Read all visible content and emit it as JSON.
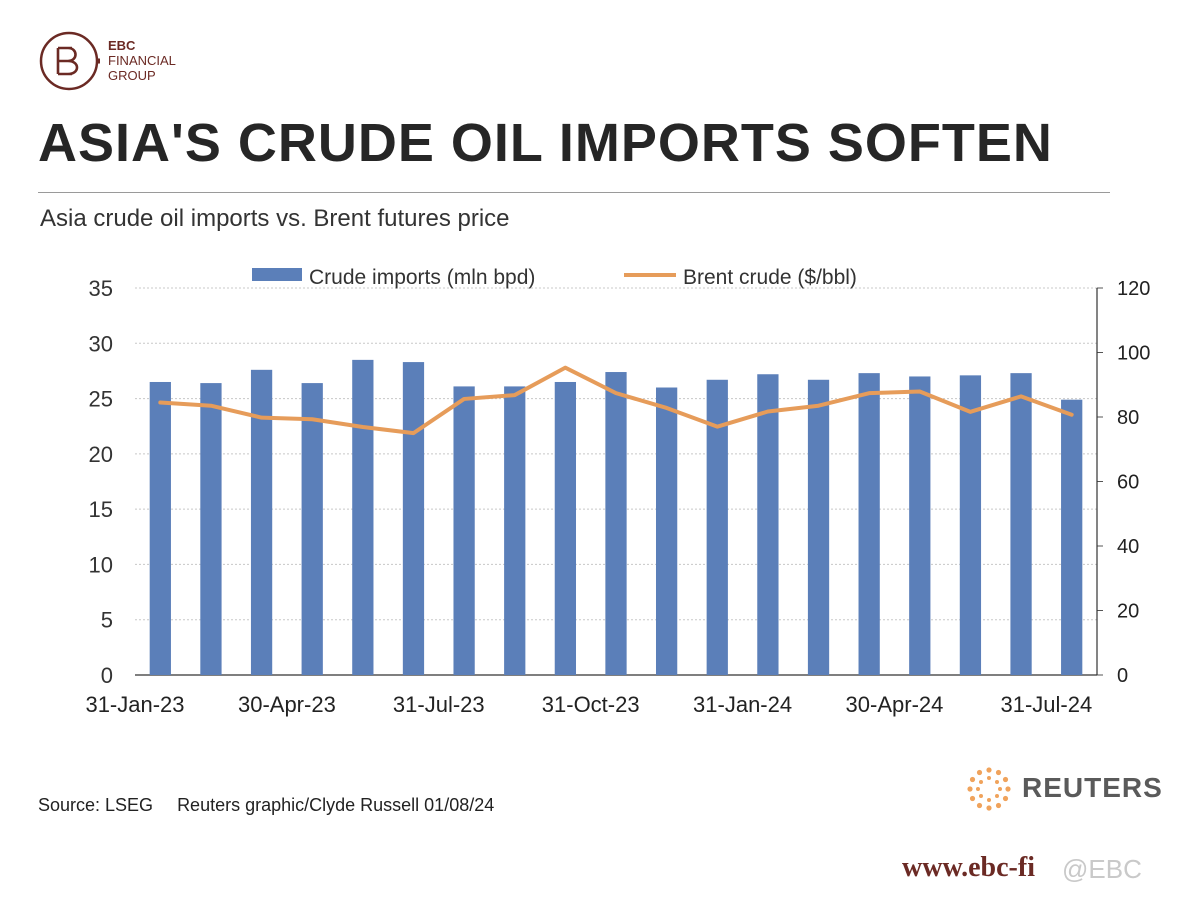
{
  "logo": {
    "brand": "EBC",
    "line2": "FINANCIAL",
    "line3": "GROUP"
  },
  "headline": "ASIA'S CRUDE OIL IMPORTS SOFTEN",
  "chart_data": {
    "type": "bar",
    "title": "Asia crude oil imports vs. Brent futures price",
    "x": [
      "2023-01-31",
      "2023-02-28",
      "2023-03-31",
      "2023-04-30",
      "2023-05-31",
      "2023-06-30",
      "2023-07-31",
      "2023-08-31",
      "2023-09-30",
      "2023-10-31",
      "2023-11-30",
      "2023-12-31",
      "2024-01-31",
      "2024-02-29",
      "2024-03-31",
      "2024-04-30",
      "2024-05-31",
      "2024-06-30",
      "2024-07-31"
    ],
    "x_tick_labels": [
      "31-Jan-23",
      "30-Apr-23",
      "31-Jul-23",
      "31-Oct-23",
      "31-Jan-24",
      "30-Apr-24",
      "31-Jul-24"
    ],
    "series": [
      {
        "name": "Crude imports (mln bpd)",
        "type": "bar",
        "axis": "left",
        "color": "#5b7fb9",
        "values": [
          26.5,
          26.4,
          27.6,
          26.4,
          28.5,
          28.3,
          26.1,
          26.1,
          26.5,
          27.4,
          26.0,
          26.7,
          27.2,
          26.7,
          27.3,
          27.0,
          27.1,
          27.3,
          24.9
        ]
      },
      {
        "name": "Brent crude ($/bbl)",
        "type": "line",
        "axis": "right",
        "color": "#e69c5a",
        "values": [
          84.5,
          83.5,
          79.8,
          79.3,
          76.9,
          75.0,
          85.6,
          86.8,
          95.3,
          87.4,
          82.8,
          77.0,
          81.7,
          83.5,
          87.4,
          87.9,
          81.6,
          86.4,
          80.7
        ]
      }
    ],
    "ylim_left": [
      0,
      35
    ],
    "yticks_left": [
      0,
      5,
      10,
      15,
      20,
      25,
      30,
      35
    ],
    "ylim_right": [
      0,
      120
    ],
    "yticks_right": [
      0,
      20,
      40,
      60,
      80,
      100,
      120
    ],
    "grid": true,
    "legend_position": "top"
  },
  "source_line": {
    "source": "Source: LSEG",
    "credit": "Reuters graphic/Clyde Russell 01/08/24"
  },
  "reuters_logo": "REUTERS",
  "website": "www.ebc-fi",
  "watermark": "@EBC",
  "colors": {
    "brand": "#6b2a24",
    "bar": "#5b7fb9",
    "line": "#e69c5a"
  }
}
